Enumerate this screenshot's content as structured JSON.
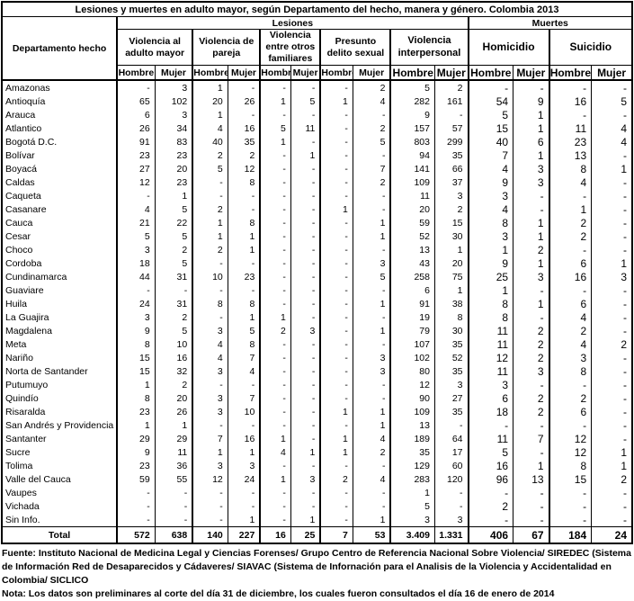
{
  "title": "Lesiones y muertes en adulto mayor, según Departamento del hecho, manera y género. Colombia 2013",
  "table": {
    "row_header": "Departamento hecho",
    "section_lesiones": "Lesiones",
    "section_muertes": "Muertes",
    "groups": [
      "Violencia al adulto mayor",
      "Violencia de pareja",
      "Violencia entre otros familiares",
      "Presunto delito sexual",
      "Violencia interpersonal",
      "Homicidio",
      "Suicidio"
    ],
    "sex_headers": [
      "Hombre",
      "Mujer"
    ],
    "rows": [
      {
        "name": "Amazonas",
        "values": [
          "-",
          "3",
          "1",
          "-",
          "-",
          "-",
          "-",
          "2",
          "5",
          "2",
          "-",
          "-",
          "-",
          "-"
        ]
      },
      {
        "name": "Antioquía",
        "values": [
          "65",
          "102",
          "20",
          "26",
          "1",
          "5",
          "1",
          "4",
          "282",
          "161",
          "54",
          "9",
          "16",
          "5"
        ]
      },
      {
        "name": "Arauca",
        "values": [
          "6",
          "3",
          "1",
          "-",
          "-",
          "-",
          "-",
          "-",
          "9",
          "-",
          "5",
          "1",
          "-",
          "-"
        ]
      },
      {
        "name": "Atlantico",
        "values": [
          "26",
          "34",
          "4",
          "16",
          "5",
          "11",
          "-",
          "2",
          "157",
          "57",
          "15",
          "1",
          "11",
          "4"
        ]
      },
      {
        "name": "Bogotá D.C.",
        "values": [
          "91",
          "83",
          "40",
          "35",
          "1",
          "-",
          "-",
          "5",
          "803",
          "299",
          "40",
          "6",
          "23",
          "4"
        ]
      },
      {
        "name": "Bolívar",
        "values": [
          "23",
          "23",
          "2",
          "2",
          "-",
          "1",
          "-",
          "-",
          "94",
          "35",
          "7",
          "1",
          "13",
          "-"
        ]
      },
      {
        "name": "Boyacá",
        "values": [
          "27",
          "20",
          "5",
          "12",
          "-",
          "-",
          "-",
          "7",
          "141",
          "66",
          "4",
          "3",
          "8",
          "1"
        ]
      },
      {
        "name": "Caldas",
        "values": [
          "12",
          "23",
          "-",
          "8",
          "-",
          "-",
          "-",
          "2",
          "109",
          "37",
          "9",
          "3",
          "4",
          "-"
        ]
      },
      {
        "name": "Caqueta",
        "values": [
          "-",
          "1",
          "-",
          "-",
          "-",
          "-",
          "-",
          "-",
          "11",
          "3",
          "3",
          "-",
          "-",
          "-"
        ]
      },
      {
        "name": "Casanare",
        "values": [
          "4",
          "5",
          "2",
          "-",
          "-",
          "-",
          "1",
          "-",
          "20",
          "2",
          "4",
          "-",
          "1",
          "-"
        ]
      },
      {
        "name": "Cauca",
        "values": [
          "21",
          "22",
          "1",
          "8",
          "-",
          "-",
          "-",
          "1",
          "59",
          "15",
          "8",
          "1",
          "2",
          "-"
        ]
      },
      {
        "name": "Cesar",
        "values": [
          "5",
          "5",
          "1",
          "1",
          "-",
          "-",
          "-",
          "1",
          "52",
          "30",
          "3",
          "1",
          "2",
          "-"
        ]
      },
      {
        "name": "Choco",
        "values": [
          "3",
          "2",
          "2",
          "1",
          "-",
          "-",
          "-",
          "-",
          "13",
          "1",
          "1",
          "2",
          "-",
          "-"
        ]
      },
      {
        "name": "Cordoba",
        "values": [
          "18",
          "5",
          "-",
          "-",
          "-",
          "-",
          "-",
          "3",
          "43",
          "20",
          "9",
          "1",
          "6",
          "1"
        ]
      },
      {
        "name": "Cundinamarca",
        "values": [
          "44",
          "31",
          "10",
          "23",
          "-",
          "-",
          "-",
          "5",
          "258",
          "75",
          "25",
          "3",
          "16",
          "3"
        ]
      },
      {
        "name": "Guaviare",
        "values": [
          "-",
          "-",
          "-",
          "-",
          "-",
          "-",
          "-",
          "-",
          "6",
          "1",
          "1",
          "-",
          "-",
          "-"
        ]
      },
      {
        "name": "Huila",
        "values": [
          "24",
          "31",
          "8",
          "8",
          "-",
          "-",
          "-",
          "1",
          "91",
          "38",
          "8",
          "1",
          "6",
          "-"
        ]
      },
      {
        "name": "La Guajira",
        "values": [
          "3",
          "2",
          "-",
          "1",
          "1",
          "-",
          "-",
          "-",
          "19",
          "8",
          "8",
          "-",
          "4",
          "-"
        ]
      },
      {
        "name": "Magdalena",
        "values": [
          "9",
          "5",
          "3",
          "5",
          "2",
          "3",
          "-",
          "1",
          "79",
          "30",
          "11",
          "2",
          "2",
          "-"
        ]
      },
      {
        "name": "Meta",
        "values": [
          "8",
          "10",
          "4",
          "8",
          "-",
          "-",
          "-",
          "-",
          "107",
          "35",
          "11",
          "2",
          "4",
          "2"
        ]
      },
      {
        "name": "Nariño",
        "values": [
          "15",
          "16",
          "4",
          "7",
          "-",
          "-",
          "-",
          "3",
          "102",
          "52",
          "12",
          "2",
          "3",
          "-"
        ]
      },
      {
        "name": "Norta de Santander",
        "values": [
          "15",
          "32",
          "3",
          "4",
          "-",
          "-",
          "-",
          "3",
          "80",
          "35",
          "11",
          "3",
          "8",
          "-"
        ]
      },
      {
        "name": "Putumuyo",
        "values": [
          "1",
          "2",
          "-",
          "-",
          "-",
          "-",
          "-",
          "-",
          "12",
          "3",
          "3",
          "-",
          "-",
          "-"
        ]
      },
      {
        "name": "Quindío",
        "values": [
          "8",
          "20",
          "3",
          "7",
          "-",
          "-",
          "-",
          "-",
          "90",
          "27",
          "6",
          "2",
          "2",
          "-"
        ]
      },
      {
        "name": "Risaralda",
        "values": [
          "23",
          "26",
          "3",
          "10",
          "-",
          "-",
          "1",
          "1",
          "109",
          "35",
          "18",
          "2",
          "6",
          "-"
        ]
      },
      {
        "name": "San Andrés y Providencia",
        "values": [
          "1",
          "1",
          "-",
          "-",
          "-",
          "-",
          "-",
          "1",
          "13",
          "-",
          "-",
          "-",
          "-",
          "-"
        ]
      },
      {
        "name": "Santanter",
        "values": [
          "29",
          "29",
          "7",
          "16",
          "1",
          "-",
          "1",
          "4",
          "189",
          "64",
          "11",
          "7",
          "12",
          "-"
        ]
      },
      {
        "name": "Sucre",
        "values": [
          "9",
          "11",
          "1",
          "1",
          "4",
          "1",
          "1",
          "2",
          "35",
          "17",
          "5",
          "-",
          "12",
          "1"
        ]
      },
      {
        "name": "Tolima",
        "values": [
          "23",
          "36",
          "3",
          "3",
          "-",
          "-",
          "-",
          "-",
          "129",
          "60",
          "16",
          "1",
          "8",
          "1"
        ]
      },
      {
        "name": "Valle del Cauca",
        "values": [
          "59",
          "55",
          "12",
          "24",
          "1",
          "3",
          "2",
          "4",
          "283",
          "120",
          "96",
          "13",
          "15",
          "2"
        ]
      },
      {
        "name": "Vaupes",
        "values": [
          "-",
          "-",
          "-",
          "-",
          "-",
          "-",
          "-",
          "-",
          "1",
          "-",
          "-",
          "-",
          "-",
          "-"
        ]
      },
      {
        "name": "Vichada",
        "values": [
          "-",
          "-",
          "-",
          "-",
          "-",
          "-",
          "-",
          "-",
          "5",
          "-",
          "2",
          "-",
          "-",
          "-"
        ]
      },
      {
        "name": "Sin Info.",
        "values": [
          "-",
          "-",
          "-",
          "1",
          "-",
          "1",
          "-",
          "1",
          "3",
          "3",
          "-",
          "-",
          "-",
          "-"
        ]
      }
    ],
    "total": {
      "name": "Total",
      "values": [
        "572",
        "638",
        "140",
        "227",
        "16",
        "25",
        "7",
        "53",
        "3.409",
        "1.331",
        "406",
        "67",
        "184",
        "24"
      ]
    }
  },
  "footer": {
    "fuente": "Fuente: Instituto Nacional de Medicina Legal y Ciencias Forenses/ Grupo Centro de Referencia Nacional Sobre Violencia/ SIREDEC (Sistema de Información Red de Desaparecidos y Cádaveres/ SIAVAC (Sistema de Infornación para el Analisis de la Violencia y Accidentalidad en Colombia/ SICLICO",
    "nota": "Nota: Los datos son preliminares al corte del día 31 de diciembre, los cuales fueron consultados el día 16 de enero de 2014"
  }
}
